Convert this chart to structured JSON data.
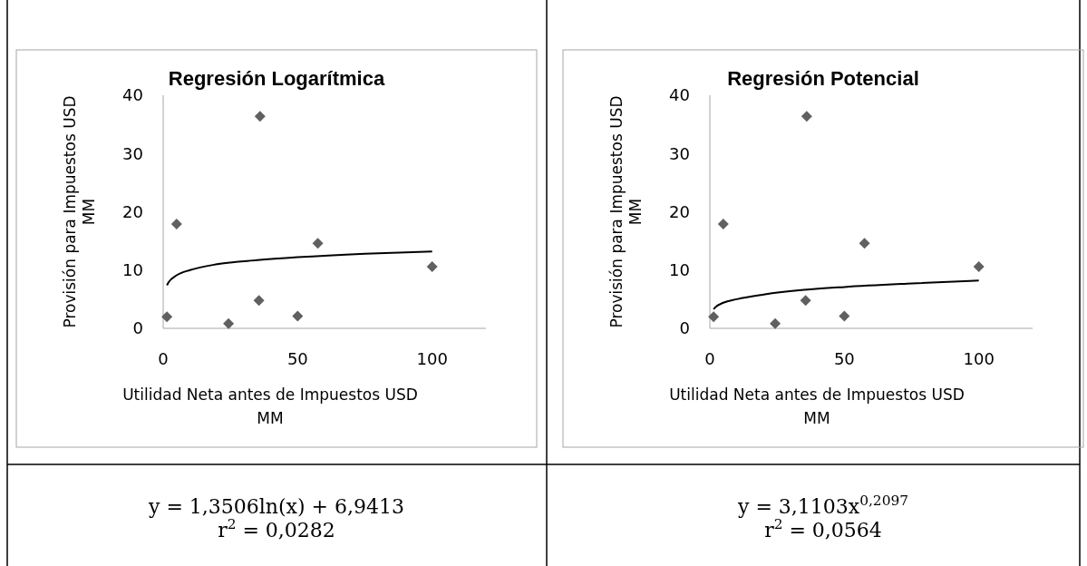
{
  "chart_data": [
    {
      "type": "scatter",
      "title": "Regresión Logarítmica",
      "xlabel": "Utilidad Neta antes de Impuestos USD MM",
      "ylabel": "Provisión para Impuestos USD MM",
      "xlim": [
        0,
        120
      ],
      "ylim": [
        0,
        40
      ],
      "xticks": [
        0,
        50,
        100
      ],
      "yticks": [
        0,
        10,
        20,
        30,
        40
      ],
      "annotations": [
        "y = 1,3506ln(x) + 6,9413",
        "r$^{2}$ =  0,0282"
      ],
      "series": [
        {
          "color": "#606060",
          "marker": "diamond",
          "x": [
            1.4,
            5,
            36,
            24.3,
            35.6,
            50,
            57.5,
            100
          ],
          "values": [
            2,
            17.9,
            36.4,
            0.8,
            4.8,
            2.1,
            14.6,
            10.6
          ]
        },
        {
          "type": "line",
          "color": "#000000",
          "marker": "none",
          "line_style": "solid",
          "x": [
            1.4,
            2,
            5,
            10,
            20,
            35,
            50,
            75,
            100
          ],
          "values": [
            7.4,
            7.9,
            9.1,
            10,
            11,
            11.7,
            12.2,
            12.8,
            13.2
          ]
        }
      ]
    },
    {
      "type": "scatter",
      "title": "Regresión Potencial",
      "xlabel": "Utilidad Neta antes de Impuestos USD MM",
      "ylabel": "Provisión para Impuestos USD MM",
      "xlim": [
        0,
        120
      ],
      "ylim": [
        0,
        40
      ],
      "xticks": [
        0,
        50,
        100
      ],
      "yticks": [
        0,
        10,
        20,
        30,
        40
      ],
      "annotations": [
        "y = 3,1103x$^{0,2097}$",
        "r$^{2}$ =  0,0564"
      ],
      "series": [
        {
          "color": "#606060",
          "marker": "diamond",
          "x": [
            1.4,
            5,
            36,
            24.3,
            35.6,
            50,
            57.5,
            100
          ],
          "values": [
            2,
            17.9,
            36.4,
            0.8,
            4.8,
            2.1,
            14.6,
            10.6
          ]
        },
        {
          "type": "line",
          "color": "#000000",
          "marker": "none",
          "line_style": "solid",
          "x": [
            1.4,
            2,
            5,
            10,
            20,
            35,
            50,
            75,
            100
          ],
          "values": [
            3.3,
            3.6,
            4.4,
            5,
            5.8,
            6.6,
            7.1,
            7.7,
            8.2
          ]
        }
      ]
    }
  ]
}
